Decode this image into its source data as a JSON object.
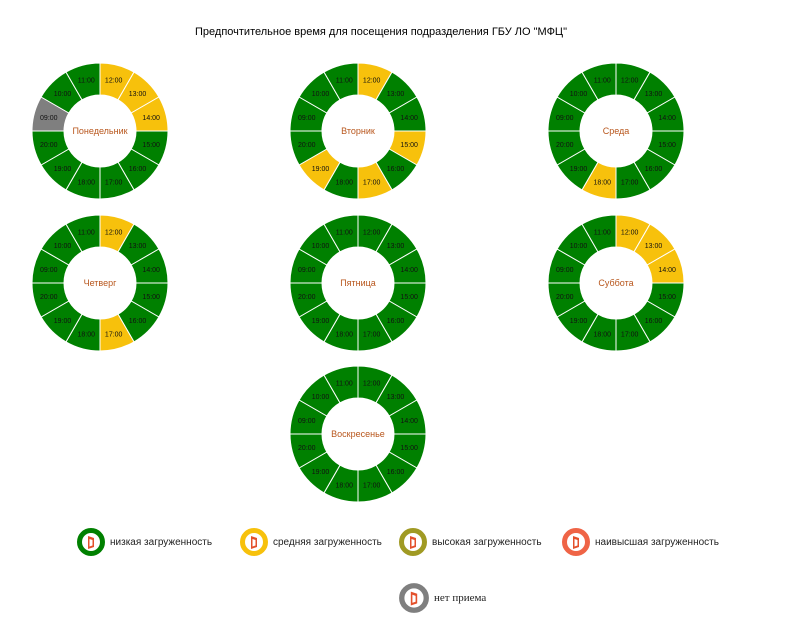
{
  "chart_data": {
    "type": "donut",
    "title": "Предпочтительное время для посещения подразделения ГБУ ЛО \"МФЦ\"",
    "hours": [
      "12:00",
      "13:00",
      "14:00",
      "15:00",
      "16:00",
      "17:00",
      "18:00",
      "19:00",
      "20:00",
      "09:00",
      "10:00",
      "11:00"
    ],
    "levels": {
      "low": {
        "label": "низкая загруженность",
        "color": "#008000"
      },
      "medium": {
        "label": "средняя загруженность",
        "color": "#f7c10c"
      },
      "high": {
        "label": "высокая загруженность",
        "color": "#a09a23"
      },
      "highest": {
        "label": "наивысшая загруженность",
        "color": "#ef6446"
      },
      "none": {
        "label": "нет приема",
        "color": "#7f7f7f"
      }
    },
    "days": [
      {
        "name": "Понедельник",
        "slots": [
          "medium",
          "medium",
          "medium",
          "low",
          "low",
          "low",
          "low",
          "low",
          "low",
          "none",
          "low",
          "low"
        ]
      },
      {
        "name": "Вторник",
        "slots": [
          "medium",
          "low",
          "low",
          "medium",
          "low",
          "medium",
          "low",
          "medium",
          "low",
          "low",
          "low",
          "low"
        ]
      },
      {
        "name": "Среда",
        "slots": [
          "low",
          "low",
          "low",
          "low",
          "low",
          "low",
          "medium",
          "low",
          "low",
          "low",
          "low",
          "low"
        ]
      },
      {
        "name": "Четверг",
        "slots": [
          "medium",
          "low",
          "low",
          "low",
          "low",
          "medium",
          "low",
          "low",
          "low",
          "low",
          "low",
          "low"
        ]
      },
      {
        "name": "Пятница",
        "slots": [
          "low",
          "low",
          "low",
          "low",
          "low",
          "low",
          "low",
          "low",
          "low",
          "low",
          "low",
          "low"
        ]
      },
      {
        "name": "Суббота",
        "slots": [
          "medium",
          "medium",
          "medium",
          "low",
          "low",
          "low",
          "low",
          "low",
          "low",
          "low",
          "low",
          "low"
        ]
      },
      {
        "name": "Воскресенье",
        "slots": [
          "low",
          "low",
          "low",
          "low",
          "low",
          "low",
          "low",
          "low",
          "low",
          "low",
          "low",
          "low"
        ]
      }
    ],
    "legend": [
      "low",
      "medium",
      "high",
      "highest",
      "none"
    ]
  }
}
